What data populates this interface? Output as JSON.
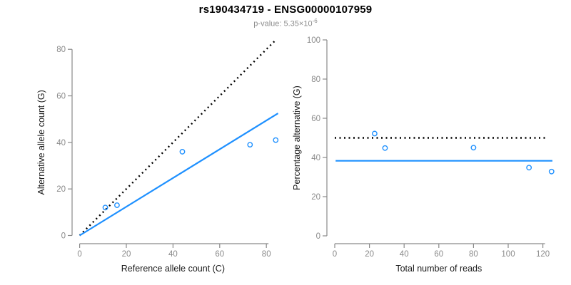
{
  "header": {
    "title": "rs190434719 - ENSG00000107959",
    "subtitle_prefix": "p-value: 5.35×10",
    "subtitle_exponent": "-6"
  },
  "colors": {
    "point_blue": "#1e90ff",
    "fit_line_blue": "#1e90ff",
    "dotted_black": "#000000",
    "axis_gray": "#8a8a8a",
    "tick_label_gray": "#8a8a8a",
    "axis_title_black": "#1a1a1a"
  },
  "chart_data": [
    {
      "type": "scatter",
      "name": "allele-counts-panel",
      "xlabel": "Reference allele count (C)",
      "ylabel": "Alternative allele count (G)",
      "xticks": [
        0,
        20,
        40,
        60,
        80
      ],
      "yticks": [
        0,
        20,
        40,
        60,
        80
      ],
      "xlim": [
        0,
        87
      ],
      "ylim": [
        0,
        86
      ],
      "grid": false,
      "points": {
        "x": [
          11,
          16,
          44,
          73,
          84
        ],
        "y": [
          12,
          13,
          36,
          39,
          41
        ]
      },
      "lines": [
        {
          "name": "identity-line",
          "style": "dotted",
          "color": "#000000",
          "x1": 0,
          "y1": 0,
          "x2": 84,
          "y2": 84
        },
        {
          "name": "fit-line",
          "style": "solid",
          "color": "#1e90ff",
          "x1": 0,
          "y1": 0,
          "x2": 85,
          "y2": 52.5
        }
      ]
    },
    {
      "type": "scatter",
      "name": "percentage-panel",
      "xlabel": "Total number of reads",
      "ylabel": "Percentage alternative (G)",
      "xticks": [
        0,
        20,
        40,
        60,
        80,
        100,
        120
      ],
      "yticks": [
        0,
        20,
        40,
        60,
        80,
        100
      ],
      "xlim": [
        0,
        126
      ],
      "ylim": [
        0,
        100
      ],
      "grid": false,
      "points": {
        "x": [
          23,
          29,
          80,
          112,
          125
        ],
        "y": [
          52.2,
          44.8,
          45.0,
          34.8,
          32.8
        ]
      },
      "lines": [
        {
          "name": "expected-50pct-line",
          "style": "dotted",
          "color": "#000000",
          "x1": 0,
          "y1": 50,
          "x2": 123,
          "y2": 50
        },
        {
          "name": "observed-mean-line",
          "style": "solid",
          "color": "#1e90ff",
          "x1": 0.5,
          "y1": 38.3,
          "x2": 125.5,
          "y2": 38.3
        }
      ]
    }
  ]
}
